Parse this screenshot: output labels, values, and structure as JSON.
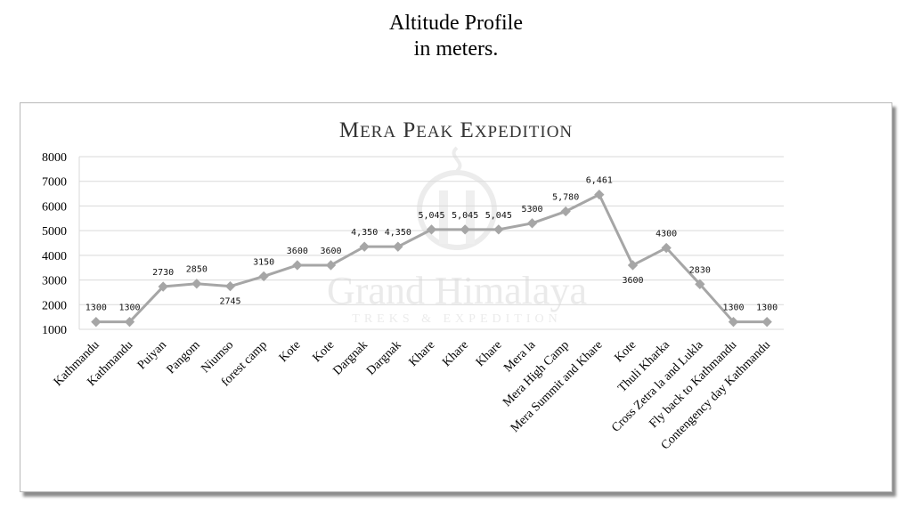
{
  "heading": {
    "line1": "Altitude Profile",
    "line2": "in meters."
  },
  "watermark": {
    "brand": "Grand Himalaya",
    "tagline": "TREKS & EXPEDITION"
  },
  "colors": {
    "series": "#a6a6a6",
    "grid": "#d9d9d9",
    "frame_shadow": "#8c8c8c",
    "watermark": "#e9e9e9"
  },
  "chart_data": {
    "type": "line",
    "title": "Mera Peak Expedition",
    "xlabel": "",
    "ylabel": "",
    "ylim": [
      1000,
      8000
    ],
    "yticks": [
      1000,
      2000,
      3000,
      4000,
      5000,
      6000,
      7000,
      8000
    ],
    "grid": "horizontal",
    "legend": "none",
    "categories": [
      "Kathmandu",
      "Kathmandu",
      "Puiyan",
      "Pangom",
      "Niumso",
      "forest camp",
      "Kote",
      "Kote",
      "Dargnak",
      "Dargnak",
      "Khare",
      "Khare",
      "Khare",
      "Mera la",
      "Mera High Camp",
      "Mera Summit and Khare",
      "Kote",
      "Thuli Kharka",
      "Cross Zetra la and Lukla",
      "Fly back to Kathmandu",
      "Contengency day Kathmandu"
    ],
    "series": [
      {
        "values": [
          1300,
          1300,
          2730,
          2850,
          2745,
          3150,
          3600,
          3600,
          4350,
          4350,
          5045,
          5045,
          5045,
          5300,
          5780,
          6461,
          3600,
          4300,
          2830,
          1300,
          1300
        ],
        "data_labels": [
          "1300",
          "1300",
          "2730",
          "2850",
          "2745",
          "3150",
          "3600",
          "3600",
          "4,350",
          "4,350",
          "5,045",
          "5,045",
          "5,045",
          "5300",
          "5,780",
          "6,461",
          "3600",
          "4300",
          "2830",
          "1300",
          "1300"
        ]
      }
    ]
  }
}
